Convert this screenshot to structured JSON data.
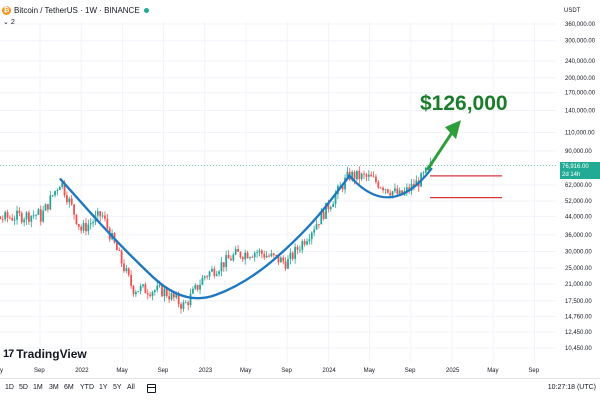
{
  "header": {
    "symbol_title": "Bitcoin / TetherUS · 1W · BINANCE",
    "indicator_count": "2"
  },
  "axis": {
    "currency": "USDT",
    "price_ticks": [
      "360,000.00",
      "300,000.00",
      "240,000.00",
      "200,000.00",
      "170,000.00",
      "140,000.00",
      "110,000.00",
      "90,000.00",
      "62,000.00",
      "52,000.00",
      "44,000.00",
      "36,000.00",
      "30,000.00",
      "25,000.00",
      "21,000.00",
      "17,500.00",
      "14,760.00",
      "12,450.00",
      "10,450.00"
    ],
    "time_ticks": [
      "y",
      "Sep",
      "2022",
      "May",
      "Sep",
      "2023",
      "May",
      "Sep",
      "2024",
      "May",
      "Sep",
      "2025",
      "May",
      "Sep"
    ]
  },
  "last_price": {
    "value": "76,916.00",
    "countdown": "2d 14h"
  },
  "annotation": {
    "target_price": "$126,000",
    "arrow_color": "#2e9e3a",
    "cup_curve_color": "#1f77c0",
    "resistance_line_color": "#d9363e"
  },
  "logo": {
    "text": "TradingView"
  },
  "bottom_bar": {
    "timeframes": [
      "1D",
      "5D",
      "1M",
      "3M",
      "6M",
      "YTD",
      "1Y",
      "5Y",
      "All"
    ],
    "clock": "10:27:18 (UTC)"
  },
  "chart_data": {
    "type": "candlestick",
    "symbol": "BTCUSDT",
    "interval": "1W",
    "scale": "log",
    "ylim": [
      10450,
      360000
    ],
    "series": [
      {
        "points": [
          {
            "date": "2021-09",
            "close": 43000
          },
          {
            "date": "2021-11",
            "close": 65000
          },
          {
            "date": "2022-01",
            "close": 38000
          },
          {
            "date": "2022-03",
            "close": 45000
          },
          {
            "date": "2022-06",
            "close": 20000
          },
          {
            "date": "2022-09",
            "close": 19500
          },
          {
            "date": "2022-11",
            "close": 16500
          },
          {
            "date": "2023-01",
            "close": 23000
          },
          {
            "date": "2023-04",
            "close": 29000
          },
          {
            "date": "2023-06",
            "close": 30000
          },
          {
            "date": "2023-09",
            "close": 26500
          },
          {
            "date": "2023-12",
            "close": 42000
          },
          {
            "date": "2024-03",
            "close": 69000
          },
          {
            "date": "2024-05",
            "close": 67000
          },
          {
            "date": "2024-08",
            "close": 55000
          },
          {
            "date": "2024-10",
            "close": 66000
          },
          {
            "date": "2024-11",
            "close": 76916
          }
        ]
      }
    ]
  }
}
